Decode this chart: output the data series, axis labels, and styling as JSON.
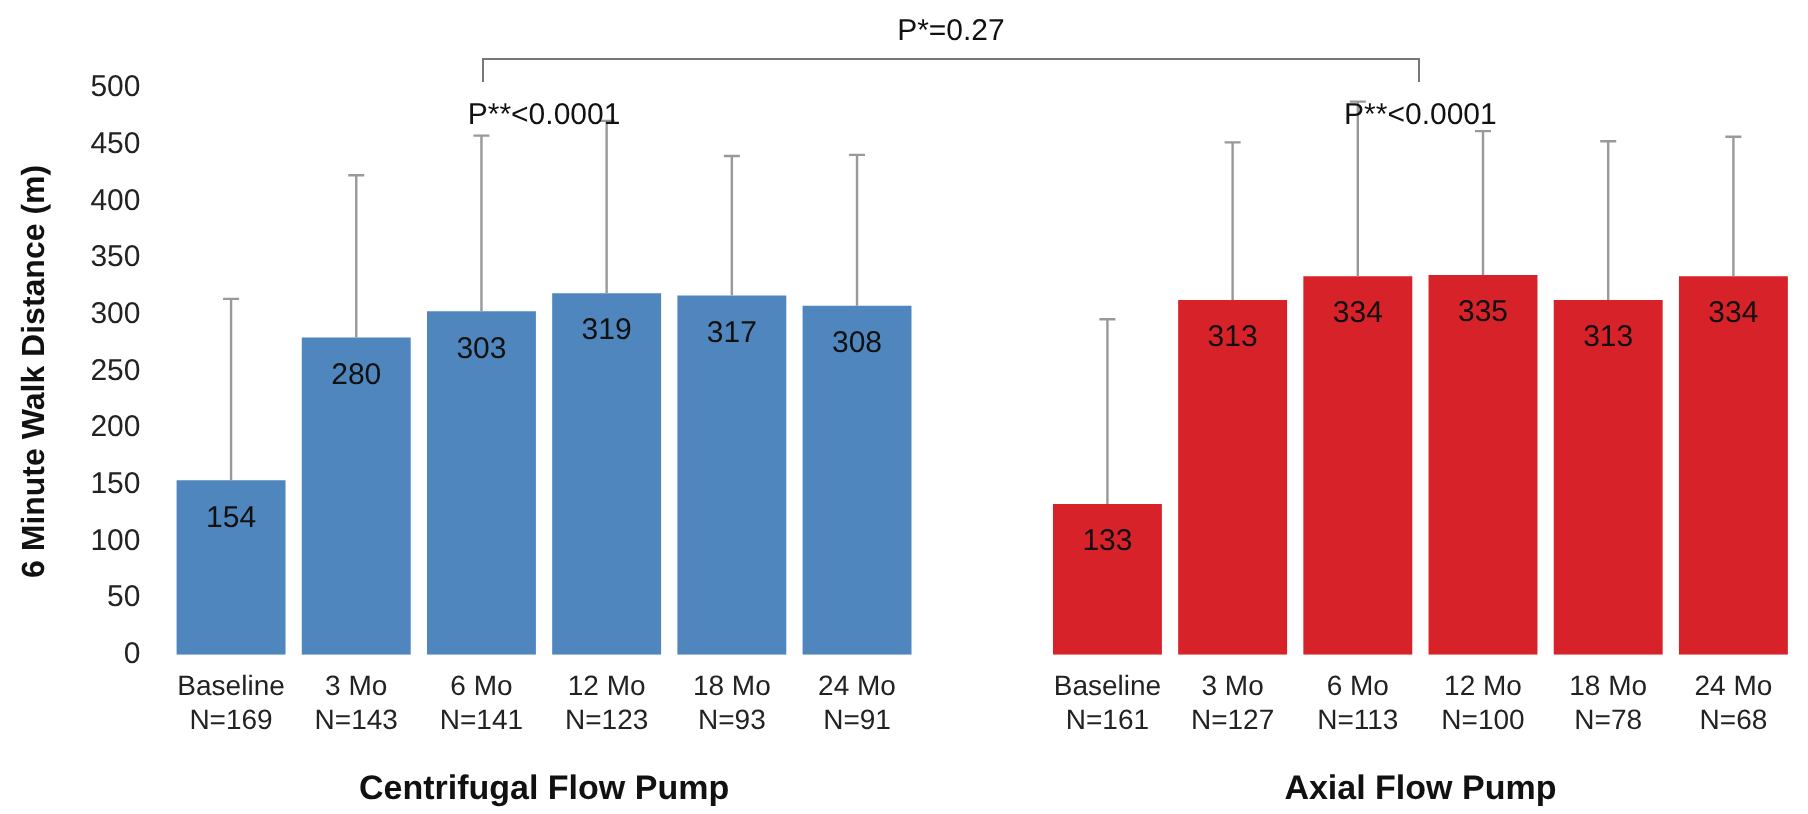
{
  "chart_data": {
    "type": "bar",
    "ylabel": "6 Minute Walk Distance (m)",
    "categories": [
      "Baseline\nN=169",
      "3 Mo\nN=143",
      "6 Mo\nN=141",
      "12 Mo\nN=123",
      "18 Mo\nN=93",
      "24 Mo\nN=91",
      null,
      "Baseline\nN=161",
      "3 Mo\nN=127",
      "6 Mo\nN=113",
      "12 Mo\nN=100",
      "18 Mo\nN=78",
      "24 Mo\nN=68"
    ],
    "series": [
      {
        "color": "#4f86be",
        "values": [
          154,
          280,
          303,
          319,
          317,
          308,
          null,
          null,
          null,
          null,
          null,
          null,
          null
        ],
        "errors": [
          [
            154,
            314
          ],
          [
            280,
            423
          ],
          [
            303,
            458
          ],
          [
            319,
            471
          ],
          [
            317,
            440
          ],
          [
            308,
            441
          ],
          null,
          null,
          null,
          null,
          null,
          null,
          null
        ]
      },
      {
        "color": "#d7222a",
        "values": [
          null,
          null,
          null,
          null,
          null,
          null,
          null,
          133,
          313,
          334,
          335,
          313,
          334
        ],
        "errors": [
          null,
          null,
          null,
          null,
          null,
          null,
          null,
          [
            133,
            296
          ],
          [
            313,
            452
          ],
          [
            334,
            488
          ],
          [
            335,
            462
          ],
          [
            313,
            453
          ],
          [
            334,
            457
          ]
        ]
      }
    ],
    "ylim": [
      0,
      500
    ],
    "yticks": [
      0,
      50,
      100,
      150,
      200,
      250,
      300,
      350,
      400,
      450,
      500
    ],
    "grid": false,
    "data_labels": true,
    "annotations": [
      "P*=0.27",
      "P**<0.0001",
      "P**<0.0001",
      "Centrifugal Flow Pump",
      "Axial Flow Pump"
    ]
  }
}
